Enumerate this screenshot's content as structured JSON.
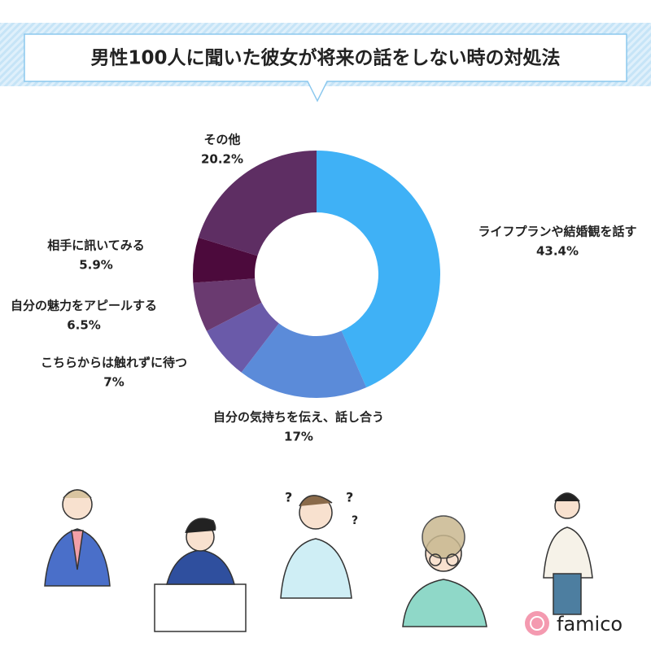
{
  "chart_data": {
    "type": "donut",
    "title": "男性100人に聞いた彼女が将来の話をしない時の対処法",
    "categories": [
      "ライフプランや結婚観を話す",
      "自分の気持ちを伝え、話し合う",
      "こちらからは触れずに待つ",
      "自分の魅力をアピールする",
      "相手に訊いてみる",
      "その他"
    ],
    "values": [
      43.4,
      17,
      7,
      6.5,
      5.9,
      20.2
    ],
    "value_labels": [
      "43.4%",
      "17%",
      "7%",
      "6.5%",
      "5.9%",
      "20.2%"
    ],
    "colors": [
      "#3fb1f6",
      "#5b8bd9",
      "#6a5aa9",
      "#6a3a70",
      "#4c0a3c",
      "#5e2e63"
    ]
  },
  "brand": "famico"
}
